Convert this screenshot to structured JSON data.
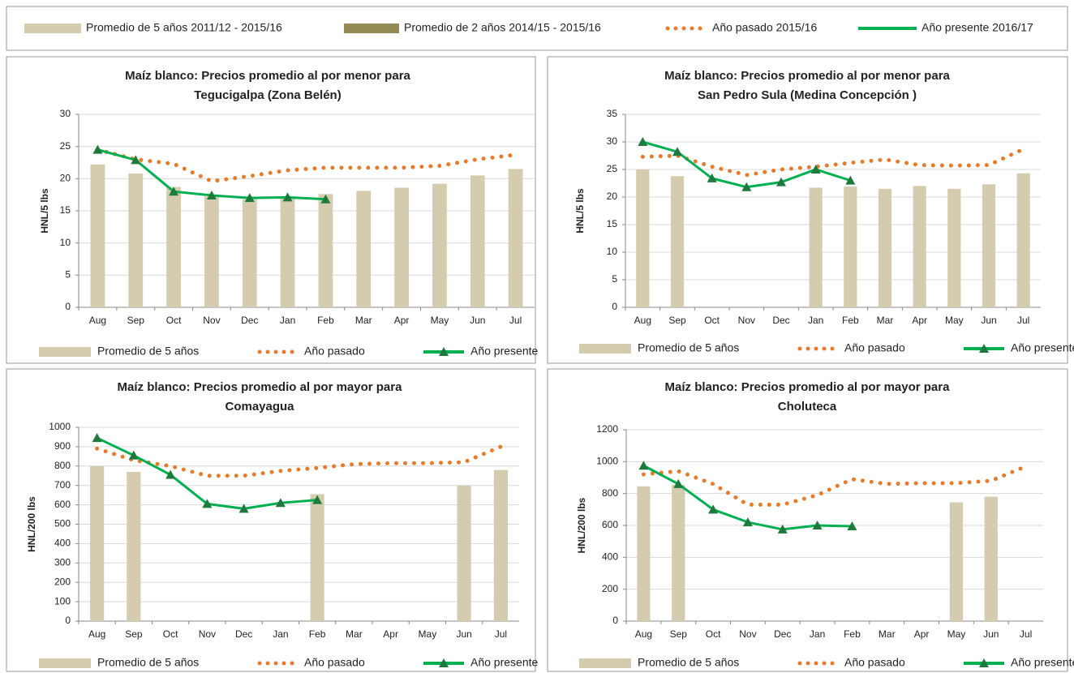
{
  "top_legend": [
    {
      "label": "Promedio de 5 años 2011/12 - 2015/16",
      "color": "#d5ccb0",
      "style": "bar"
    },
    {
      "label": "Promedio de 2 años 2014/15 - 2015/16",
      "color": "#948a54",
      "style": "bar"
    },
    {
      "label": "Año pasado 2015/16",
      "color": "#e87a2a",
      "style": "dots"
    },
    {
      "label": "Año presente  2016/17",
      "color": "#00b050",
      "style": "line"
    }
  ],
  "chart_data": [
    {
      "type": "combo",
      "title": [
        "Maíz blanco: Precios promedio al por menor para",
        "Tegucigalpa (Zona Belén)"
      ],
      "y_label": "HNL/5 lbs",
      "categories": [
        "Aug",
        "Sep",
        "Oct",
        "Nov",
        "Dec",
        "Jan",
        "Feb",
        "Mar",
        "Apr",
        "May",
        "Jun",
        "Jul"
      ],
      "ylim": [
        0,
        30
      ],
      "yticks": [
        0,
        5,
        10,
        15,
        20,
        25,
        30
      ],
      "grid": true,
      "series": [
        {
          "name": "Promedio de 5 años",
          "color": "#d5ccb0",
          "style": "bar",
          "values": [
            22.2,
            20.8,
            18.7,
            17.2,
            16.8,
            17.2,
            17.6,
            18.1,
            18.6,
            19.2,
            20.5,
            21.5
          ]
        },
        {
          "name": "Año pasado",
          "color": "#e87a2a",
          "style": "dots",
          "values": [
            24.5,
            23.0,
            22.3,
            19.6,
            20.4,
            21.3,
            21.7,
            21.7,
            21.7,
            22.0,
            23.0,
            23.7
          ]
        },
        {
          "name": "Año presente",
          "color": "#00b050",
          "marker_color": "#1e7a3c",
          "style": "line",
          "values": [
            24.5,
            22.9,
            18.0,
            17.4,
            17.0,
            17.1,
            16.8,
            null,
            null,
            null,
            null,
            null
          ]
        }
      ]
    },
    {
      "type": "combo",
      "title": [
        "Maíz blanco: Precios promedio al por menor para",
        "San Pedro Sula (Medina Concepción )"
      ],
      "y_label": "HNL/5 lbs",
      "categories": [
        "Aug",
        "Sep",
        "Oct",
        "Nov",
        "Dec",
        "Jan",
        "Feb",
        "Mar",
        "Apr",
        "May",
        "Jun",
        "Jul"
      ],
      "ylim": [
        0,
        35
      ],
      "yticks": [
        0,
        5,
        10,
        15,
        20,
        25,
        30,
        35
      ],
      "grid": true,
      "series": [
        {
          "name": "Promedio de 5 años",
          "color": "#d5ccb0",
          "style": "bar",
          "values": [
            25.0,
            23.8,
            null,
            null,
            null,
            21.7,
            21.9,
            21.5,
            22.0,
            21.5,
            22.3,
            24.3
          ]
        },
        {
          "name": "Año pasado",
          "color": "#e87a2a",
          "style": "dots",
          "values": [
            27.3,
            27.5,
            25.5,
            24.0,
            25.0,
            25.5,
            26.2,
            26.8,
            25.8,
            25.7,
            25.8,
            28.7
          ]
        },
        {
          "name": "Año presente",
          "color": "#00b050",
          "marker_color": "#1e7a3c",
          "style": "line",
          "values": [
            30.0,
            28.2,
            23.4,
            21.8,
            22.7,
            25.0,
            23.0,
            null,
            null,
            null,
            null,
            null
          ]
        }
      ]
    },
    {
      "type": "combo",
      "title": [
        "Maíz blanco: Precios promedio al por mayor para",
        "Comayagua"
      ],
      "y_label": "HNL/200 lbs",
      "categories": [
        "Aug",
        "Sep",
        "Oct",
        "Nov",
        "Dec",
        "Jan",
        "Feb",
        "Mar",
        "Apr",
        "May",
        "Jun",
        "Jul"
      ],
      "ylim": [
        0,
        1000
      ],
      "yticks": [
        0,
        100,
        200,
        300,
        400,
        500,
        600,
        700,
        800,
        900,
        1000
      ],
      "grid": true,
      "series": [
        {
          "name": "Promedio de 5 años",
          "color": "#d5ccb0",
          "style": "bar",
          "values": [
            800,
            770,
            null,
            null,
            null,
            null,
            655,
            null,
            null,
            null,
            700,
            780
          ]
        },
        {
          "name": "Año pasado",
          "color": "#e87a2a",
          "style": "dots",
          "values": [
            890,
            830,
            800,
            750,
            750,
            775,
            790,
            810,
            815,
            815,
            820,
            900
          ]
        },
        {
          "name": "Año presente",
          "color": "#00b050",
          "marker_color": "#1e7a3c",
          "style": "line",
          "values": [
            945,
            855,
            755,
            605,
            580,
            610,
            625,
            null,
            null,
            null,
            null,
            null
          ]
        }
      ]
    },
    {
      "type": "combo",
      "title": [
        "Maíz blanco: Precios promedio al por mayor para",
        "Choluteca"
      ],
      "y_label": "HNL/200 lbs",
      "categories": [
        "Aug",
        "Sep",
        "Oct",
        "Nov",
        "Dec",
        "Jan",
        "Feb",
        "Mar",
        "Apr",
        "May",
        "Jun",
        "Jul"
      ],
      "ylim": [
        0,
        1200
      ],
      "yticks": [
        0,
        200,
        400,
        600,
        800,
        1000,
        1200
      ],
      "grid": true,
      "series": [
        {
          "name": "Promedio de 5 años",
          "color": "#d5ccb0",
          "style": "bar",
          "values": [
            845,
            855,
            null,
            null,
            null,
            null,
            null,
            null,
            null,
            745,
            780,
            null
          ]
        },
        {
          "name": "Año pasado",
          "color": "#e87a2a",
          "style": "dots",
          "values": [
            920,
            940,
            860,
            730,
            730,
            790,
            890,
            860,
            865,
            865,
            880,
            970
          ]
        },
        {
          "name": "Año presente",
          "color": "#00b050",
          "marker_color": "#1e7a3c",
          "style": "line",
          "values": [
            975,
            860,
            700,
            620,
            575,
            600,
            595,
            null,
            null,
            null,
            null,
            null
          ]
        }
      ]
    }
  ]
}
